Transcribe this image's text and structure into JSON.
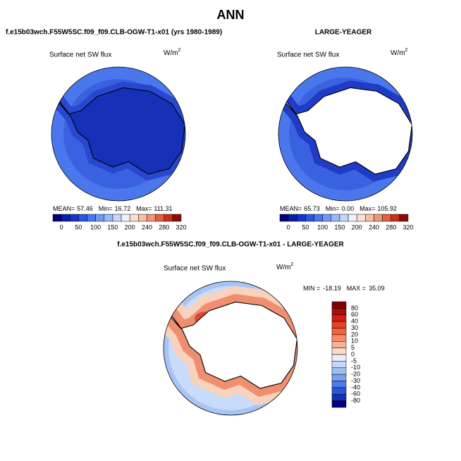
{
  "title": "ANN",
  "panels": [
    {
      "case": "f.e15b03wch.F55W5SC.f09_f09.CLB-OGW-T1-x01 (yrs 1980-1989)",
      "variable": "Surface net SW flux",
      "units": "W/m",
      "units_power": "2",
      "stats": {
        "mean_label": "MEAN=",
        "mean": "57.46",
        "min_label": "Min=",
        "min": "16.72",
        "max_label": "Max=",
        "max": "111.31"
      },
      "colorbar_labels": [
        "0",
        "50",
        "100",
        "150",
        "200",
        "240",
        "280",
        "320"
      ]
    },
    {
      "case": "LARGE-YEAGER",
      "variable": "Surface net SW flux",
      "units": "W/m",
      "units_power": "2",
      "stats": {
        "mean_label": "MEAN=",
        "mean": "65.73",
        "min_label": "Min=",
        "min": "0.00",
        "max_label": "Max=",
        "max": "105.92"
      },
      "colorbar_labels": [
        "0",
        "50",
        "100",
        "150",
        "200",
        "240",
        "280",
        "320"
      ]
    }
  ],
  "difference": {
    "case": "f.e15b03wch.F55W5SC.f09_f09.CLB-OGW-T1-x01 - LARGE-YEAGER",
    "variable": "Surface net SW flux",
    "units": "W/m",
    "units_power": "2",
    "stats": {
      "min_label": "MIN =",
      "min": "-18.19",
      "max_label": "MAX =",
      "max": "35.09"
    },
    "colorbar_labels": [
      "80",
      "60",
      "40",
      "30",
      "20",
      "10",
      "5",
      "0",
      "-5",
      "-10",
      "-20",
      "-30",
      "-40",
      "-60",
      "-80"
    ]
  }
}
